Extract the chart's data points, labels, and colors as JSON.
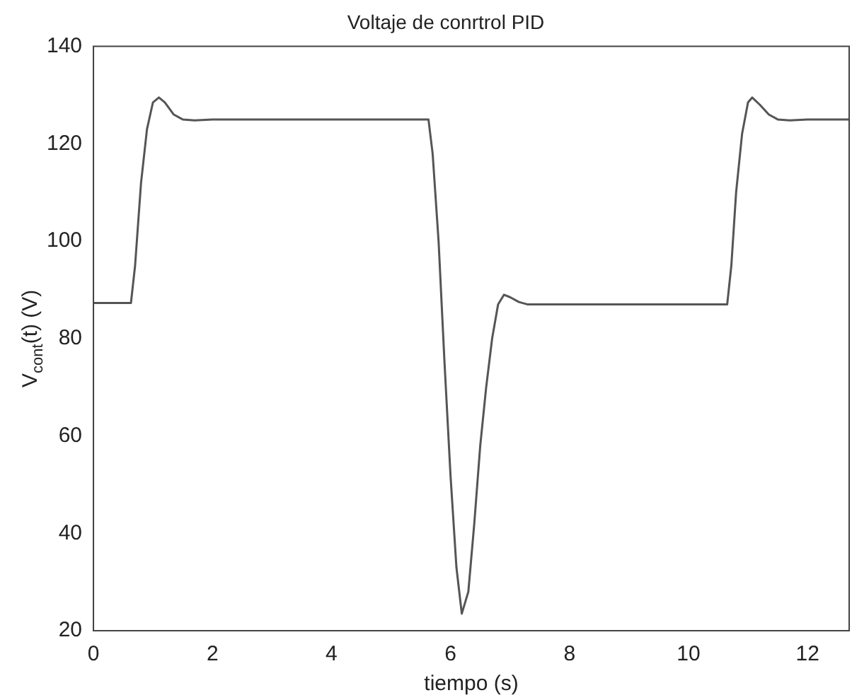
{
  "chart_data": {
    "type": "line",
    "title": "Voltaje de conrtrol PID",
    "xlabel": "tiempo (s)",
    "ylabel": "V$_{cont}$(t) (V)",
    "xlim": [
      0,
      12.7
    ],
    "xticks": [
      0,
      2,
      4,
      6,
      8,
      10,
      12
    ],
    "ylim": [
      20,
      140
    ],
    "yticks": [
      20,
      40,
      60,
      80,
      100,
      120,
      140
    ],
    "grid": false,
    "legend": false,
    "marker": "none",
    "line_style": "solid",
    "series": [
      {
        "color": "#555555",
        "x": [
          0,
          0.63,
          0.7,
          0.8,
          0.9,
          1.0,
          1.1,
          1.2,
          1.35,
          1.5,
          1.7,
          2,
          3,
          4,
          5,
          5.63,
          5.7,
          5.8,
          5.9,
          6.0,
          6.1,
          6.19,
          6.3,
          6.4,
          6.5,
          6.6,
          6.7,
          6.8,
          6.9,
          7.0,
          7.15,
          7.3,
          8,
          9,
          10,
          10.65,
          10.72,
          10.8,
          10.9,
          11.0,
          11.07,
          11.2,
          11.35,
          11.5,
          11.7,
          12,
          12.7
        ],
        "values": [
          87.3,
          87.3,
          95,
          112,
          123,
          128.5,
          129.5,
          128.5,
          126,
          125,
          124.8,
          125,
          125,
          125,
          125,
          125,
          118,
          100,
          75,
          52,
          33,
          23.5,
          28,
          42,
          58,
          70,
          80,
          87,
          89,
          88.5,
          87.5,
          87,
          87,
          87,
          87,
          87,
          95,
          110,
          122,
          128.5,
          129.5,
          128,
          126,
          125,
          124.8,
          125,
          125
        ]
      }
    ]
  }
}
